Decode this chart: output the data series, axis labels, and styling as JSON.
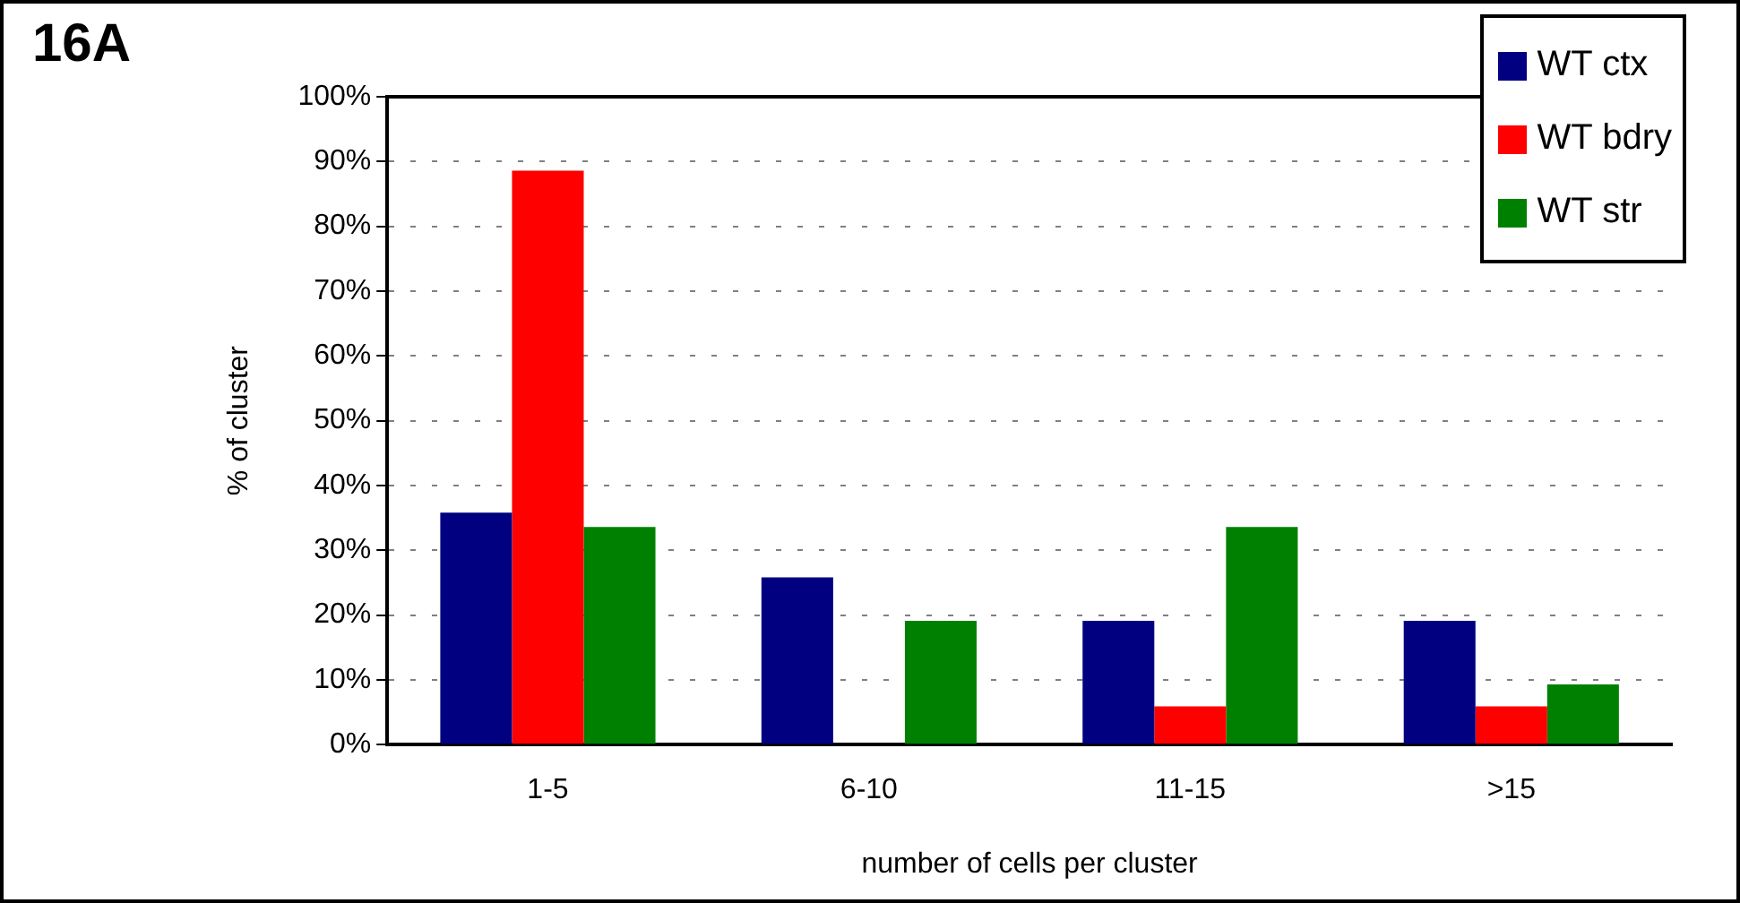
{
  "chart_data": {
    "type": "bar",
    "title": "16A",
    "xlabel": "number of cells per cluster",
    "ylabel": "% of cluster",
    "categories": [
      "1-5",
      "6-10",
      "11-15",
      ">15"
    ],
    "series": [
      {
        "name": "WT ctx",
        "color": "#000080",
        "values": [
          35.8,
          25.8,
          19.1,
          19.1
        ]
      },
      {
        "name": "WT bdry",
        "color": "#ff0000",
        "values": [
          88.6,
          0,
          5.9,
          5.9
        ]
      },
      {
        "name": "WT str",
        "color": "#008000",
        "values": [
          33.6,
          19.1,
          33.6,
          9.3
        ]
      }
    ],
    "ylim": [
      0,
      100
    ],
    "yticks": [
      {
        "value": 0,
        "label": "0%"
      },
      {
        "value": 10,
        "label": "10%"
      },
      {
        "value": 20,
        "label": "20%"
      },
      {
        "value": 30,
        "label": "30%"
      },
      {
        "value": 40,
        "label": "40%"
      },
      {
        "value": 50,
        "label": "50%"
      },
      {
        "value": 60,
        "label": "60%"
      },
      {
        "value": 70,
        "label": "70%"
      },
      {
        "value": 80,
        "label": "80%"
      },
      {
        "value": 90,
        "label": "90%"
      },
      {
        "value": 100,
        "label": "100%"
      }
    ],
    "grid": "y",
    "legend": "top right"
  }
}
